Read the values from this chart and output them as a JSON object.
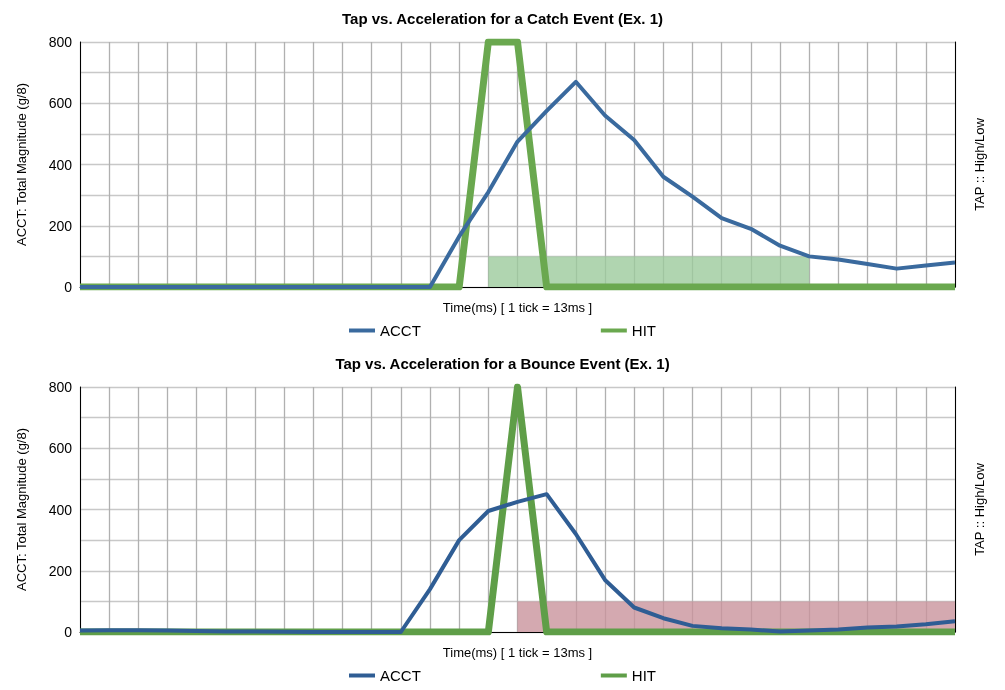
{
  "chart_data": [
    {
      "type": "line",
      "title": "Tap vs. Acceleration for a Catch Event (Ex. 1)",
      "xlabel": "Time(ms) [ 1 tick = 13ms ]",
      "ylabel": "ACCT: Total Magnitude (g/8)",
      "y2label": "TAP :: High/Low",
      "categories": [
        null,
        null,
        null,
        null,
        null,
        null,
        null,
        null,
        null,
        null,
        null,
        null,
        null,
        null,
        null,
        null,
        null,
        null,
        null,
        null,
        null,
        null,
        null,
        null,
        null,
        null,
        null,
        null,
        null,
        null,
        null
      ],
      "series": [
        {
          "name": "ACCT",
          "color": "#3a6a9e",
          "values": [
            0,
            0,
            0,
            0,
            0,
            0,
            0,
            0,
            0,
            0,
            0,
            0,
            0,
            165,
            310,
            475,
            575,
            670,
            560,
            480,
            360,
            295,
            225,
            190,
            135,
            100,
            90,
            75,
            60,
            70,
            80
          ]
        },
        {
          "name": "HIT",
          "color": "#6aa84f",
          "values": [
            0,
            0,
            0,
            0,
            0,
            0,
            0,
            0,
            0,
            0,
            0,
            0,
            0,
            0,
            800,
            800,
            0,
            0,
            0,
            0,
            0,
            0,
            0,
            0,
            0,
            0,
            0,
            0,
            0,
            0,
            0
          ]
        },
        {
          "type": "area",
          "color": "#9ccb9c",
          "values": [
            null,
            null,
            null,
            null,
            null,
            null,
            null,
            null,
            null,
            null,
            null,
            null,
            null,
            null,
            100,
            100,
            100,
            100,
            100,
            100,
            100,
            100,
            100,
            100,
            100,
            100,
            null,
            null,
            null,
            null,
            null
          ]
        }
      ],
      "ylim": [
        0,
        800
      ],
      "yticks": [
        0,
        {
          "value": 100,
          "label": null
        },
        200,
        {
          "value": 300,
          "label": null
        },
        400,
        {
          "value": 500,
          "label": null
        },
        600,
        {
          "value": 700,
          "label": null
        },
        800
      ],
      "grid": true,
      "legend": "bottom",
      "tick_labels": "y",
      "marker": "none",
      "line_style": "solid"
    },
    {
      "type": "line",
      "title": "Tap vs. Acceleration for a Bounce Event (Ex. 1)",
      "xlabel": "Time(ms) [ 1 tick = 13ms ]",
      "ylabel": "ACCT: Total Magnitude (g/8)",
      "y2label": "TAP :: High/Low",
      "categories": [
        null,
        null,
        null,
        null,
        null,
        null,
        null,
        null,
        null,
        null,
        null,
        null,
        null,
        null,
        null,
        null,
        null,
        null,
        null,
        null,
        null,
        null,
        null,
        null,
        null,
        null,
        null,
        null,
        null,
        null,
        null
      ],
      "series": [
        {
          "name": "ACCT",
          "color": "#2f5d94",
          "values": [
            5,
            6,
            6,
            5,
            3,
            2,
            2,
            1,
            0,
            0,
            0,
            0,
            140,
            300,
            395,
            425,
            450,
            320,
            170,
            80,
            45,
            20,
            12,
            8,
            2,
            5,
            8,
            15,
            18,
            25,
            35
          ]
        },
        {
          "name": "HIT",
          "color": "#5f9e48",
          "values": [
            0,
            0,
            0,
            0,
            0,
            0,
            0,
            0,
            0,
            0,
            0,
            0,
            0,
            0,
            0,
            800,
            0,
            0,
            0,
            0,
            0,
            0,
            0,
            0,
            0,
            0,
            0,
            0,
            0,
            0,
            0
          ]
        },
        {
          "type": "area",
          "color": "#c9939c",
          "values": [
            null,
            null,
            null,
            null,
            null,
            null,
            null,
            null,
            null,
            null,
            null,
            null,
            null,
            null,
            null,
            100,
            100,
            100,
            100,
            100,
            100,
            100,
            100,
            100,
            100,
            100,
            100,
            100,
            100,
            100,
            100
          ]
        }
      ],
      "ylim": [
        0,
        800
      ],
      "yticks": [
        0,
        {
          "value": 100,
          "label": null
        },
        200,
        {
          "value": 300,
          "label": null
        },
        400,
        {
          "value": 500,
          "label": null
        },
        600,
        {
          "value": 700,
          "label": null
        },
        800
      ],
      "grid": true,
      "legend": "bottom",
      "tick_labels": "y",
      "marker": "none",
      "line_style": "solid"
    }
  ]
}
